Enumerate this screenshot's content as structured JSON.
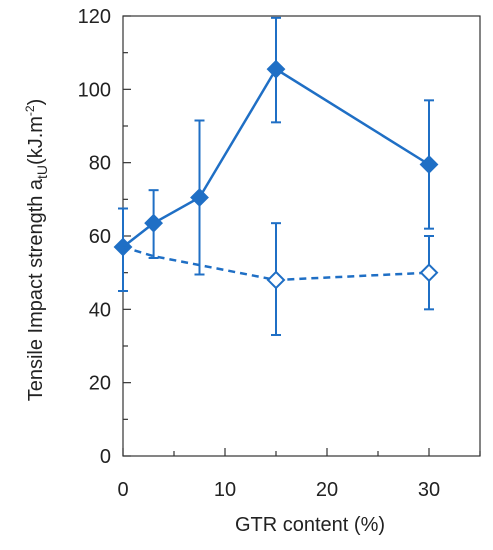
{
  "chart_data": {
    "type": "line",
    "xlabel": "GTR content (%)",
    "ylabel_main": "Tensile Impact strength a",
    "ylabel_sub": "tU",
    "ylabel_unit_pre": "(kJ.m",
    "ylabel_unit_sup": "-2",
    "ylabel_unit_post": ")",
    "xlim": [
      0,
      35
    ],
    "ylim": [
      0,
      120
    ],
    "xticks": [
      0,
      10,
      20,
      30
    ],
    "yticks": [
      0,
      20,
      40,
      60,
      80,
      100,
      120
    ],
    "xticks_minor_step": 5,
    "yticks_minor_step": 10,
    "grid": false,
    "series": [
      {
        "style": "solid",
        "marker": "filled-diamond",
        "color": "#1f6fc5",
        "x": [
          0,
          3,
          7.5,
          15,
          30
        ],
        "y": [
          57,
          63.5,
          70.5,
          105.5,
          79.5
        ],
        "yerr_low": [
          45,
          54,
          49.5,
          91,
          62
        ],
        "yerr_high": [
          67.5,
          72.5,
          91.5,
          119.5,
          97
        ]
      },
      {
        "style": "dashed",
        "marker": "open-diamond",
        "color": "#1f6fc5",
        "x": [
          0,
          3,
          15,
          30
        ],
        "y": [
          57,
          54.5,
          48,
          50
        ],
        "yerr_low": null,
        "yerr_high": null,
        "yerr_low_at": [
          null,
          null,
          33,
          40
        ],
        "yerr_high_at": [
          null,
          null,
          63.5,
          60
        ]
      }
    ]
  }
}
